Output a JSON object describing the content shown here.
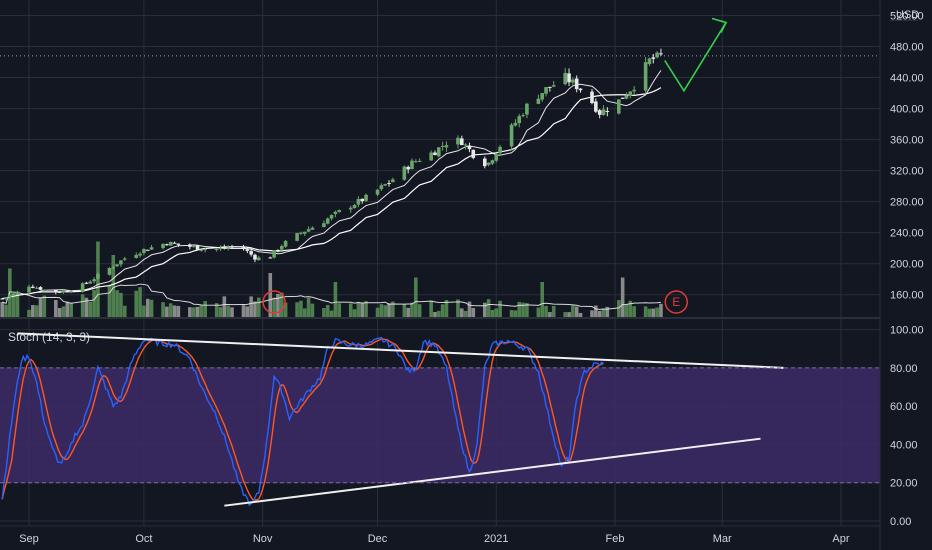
{
  "chart_data": {
    "type": "candlestick",
    "currency_label": "USD",
    "colors": {
      "background": "#131722",
      "grid": "#2a2e39",
      "up": "#6aa56a",
      "down": "#e8e8e8",
      "volume_up": "#4f7f4f",
      "volume_down": "#8a8a8a",
      "sma_fast": "#e6e6e6",
      "sma_slow": "#ffffff",
      "stoch_k": "#2962ff",
      "stoch_d": "#ff5722",
      "stoch_band": "#3d2a66",
      "trendline": "#f0f0f0",
      "projection": "#38d24a",
      "earnings": "#e53935"
    },
    "price_axis": {
      "min": 130,
      "max": 540,
      "ticks": [
        "160.00",
        "200.00",
        "240.00",
        "280.00",
        "320.00",
        "360.00",
        "400.00",
        "440.00",
        "480.00",
        "520.00"
      ],
      "last_price": 468
    },
    "x_axis": {
      "months": [
        "Sep",
        "Oct",
        "Nov",
        "Dec",
        "2021",
        "Feb",
        "Mar",
        "Apr"
      ],
      "month_day_index": [
        0,
        30,
        61,
        91,
        122,
        153,
        181,
        212
      ]
    },
    "price_keyframes": [
      [
        -7,
        155
      ],
      [
        -3,
        163
      ],
      [
        0,
        172
      ],
      [
        3,
        168
      ],
      [
        6,
        163
      ],
      [
        9,
        165
      ],
      [
        12,
        167
      ],
      [
        16,
        178
      ],
      [
        20,
        191
      ],
      [
        25,
        207
      ],
      [
        30,
        218
      ],
      [
        36,
        227
      ],
      [
        42,
        222
      ],
      [
        48,
        218
      ],
      [
        55,
        223
      ],
      [
        59,
        208
      ],
      [
        62,
        205
      ],
      [
        66,
        224
      ],
      [
        71,
        240
      ],
      [
        76,
        252
      ],
      [
        82,
        270
      ],
      [
        88,
        285
      ],
      [
        94,
        305
      ],
      [
        100,
        330
      ],
      [
        106,
        345
      ],
      [
        110,
        360
      ],
      [
        113,
        358
      ],
      [
        118,
        330
      ],
      [
        120,
        330
      ],
      [
        126,
        375
      ],
      [
        131,
        410
      ],
      [
        135,
        425
      ],
      [
        140,
        440
      ],
      [
        145,
        422
      ],
      [
        149,
        395
      ],
      [
        153,
        405
      ],
      [
        158,
        430
      ],
      [
        162,
        462
      ],
      [
        165,
        468
      ]
    ],
    "volume_keyframes": [
      [
        -7,
        0.4
      ],
      [
        10,
        0.3
      ],
      [
        20,
        0.55
      ],
      [
        40,
        0.35
      ],
      [
        60,
        0.45
      ],
      [
        75,
        0.3
      ],
      [
        100,
        0.25
      ],
      [
        122,
        0.3
      ],
      [
        140,
        0.2
      ],
      [
        165,
        0.35
      ]
    ],
    "volume_spikes": [
      [
        -5,
        1.1
      ],
      [
        18,
        1.7
      ],
      [
        22,
        1.4
      ],
      [
        61,
        1.2
      ],
      [
        63,
        1.0
      ],
      [
        80,
        0.8
      ],
      [
        101,
        0.9
      ],
      [
        110,
        1.3
      ],
      [
        134,
        0.8
      ],
      [
        155,
        0.9
      ]
    ],
    "earnings_marker": "E",
    "stochastic": {
      "label": "Stoch (14, 3, 3)",
      "min": 0,
      "max": 105,
      "ticks": [
        "0.00",
        "20.00",
        "40.00",
        "60.00",
        "80.00",
        "100.00"
      ],
      "band": [
        20,
        80
      ],
      "k_keyframes": [
        [
          -7,
          12
        ],
        [
          -4,
          60
        ],
        [
          -2,
          84
        ],
        [
          0,
          86
        ],
        [
          2,
          72
        ],
        [
          4,
          52
        ],
        [
          6,
          38
        ],
        [
          8,
          30
        ],
        [
          10,
          34
        ],
        [
          12,
          45
        ],
        [
          14,
          50
        ],
        [
          16,
          64
        ],
        [
          18,
          80
        ],
        [
          20,
          70
        ],
        [
          22,
          60
        ],
        [
          24,
          65
        ],
        [
          27,
          84
        ],
        [
          30,
          95
        ],
        [
          34,
          93
        ],
        [
          38,
          92
        ],
        [
          42,
          85
        ],
        [
          45,
          70
        ],
        [
          49,
          55
        ],
        [
          52,
          38
        ],
        [
          55,
          18
        ],
        [
          58,
          8
        ],
        [
          60,
          15
        ],
        [
          62,
          40
        ],
        [
          64,
          76
        ],
        [
          66,
          68
        ],
        [
          68,
          54
        ],
        [
          70,
          60
        ],
        [
          73,
          68
        ],
        [
          76,
          75
        ],
        [
          78,
          90
        ],
        [
          80,
          94
        ],
        [
          84,
          92
        ],
        [
          88,
          92
        ],
        [
          92,
          95
        ],
        [
          96,
          90
        ],
        [
          99,
          78
        ],
        [
          101,
          80
        ],
        [
          103,
          94
        ],
        [
          106,
          92
        ],
        [
          109,
          80
        ],
        [
          112,
          48
        ],
        [
          115,
          25
        ],
        [
          117,
          40
        ],
        [
          119,
          80
        ],
        [
          121,
          92
        ],
        [
          125,
          94
        ],
        [
          130,
          90
        ],
        [
          133,
          78
        ],
        [
          136,
          52
        ],
        [
          139,
          28
        ],
        [
          141,
          33
        ],
        [
          143,
          64
        ],
        [
          145,
          78
        ],
        [
          148,
          82
        ],
        [
          150,
          82
        ]
      ],
      "trend_upper": [
        [
          -3,
          98
        ],
        [
          197,
          80
        ]
      ],
      "trend_lower": [
        [
          51,
          8
        ],
        [
          191,
          43
        ]
      ]
    }
  }
}
